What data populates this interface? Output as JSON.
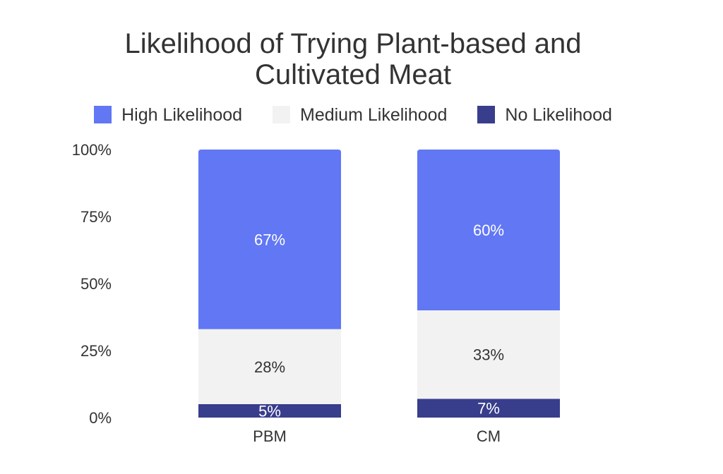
{
  "chart_data": {
    "type": "bar",
    "stacked": true,
    "title": "Likelihood of Trying Plant-based and Cultivated Meat",
    "title_lines": [
      "Likelihood of Trying Plant-based and",
      "Cultivated Meat"
    ],
    "xlabel": "",
    "ylabel": "",
    "ylim": [
      0,
      100
    ],
    "yticks": [
      "100%",
      "75%",
      "50%",
      "25%",
      "0%"
    ],
    "ytick_values": [
      100,
      75,
      50,
      25,
      0
    ],
    "categories": [
      "PBM",
      "CM"
    ],
    "series": [
      {
        "name": "No Likelihood",
        "values": [
          5,
          7
        ],
        "labels": [
          "5%",
          "7%"
        ],
        "color": "#383d8c",
        "label_color": "#ffffff"
      },
      {
        "name": "Medium Likelihood",
        "values": [
          28,
          33
        ],
        "labels": [
          "28%",
          "33%"
        ],
        "color": "#f2f2f2",
        "label_color": "#333333"
      },
      {
        "name": "High Likelihood",
        "values": [
          67,
          60
        ],
        "labels": [
          "67%",
          "60%"
        ],
        "color": "#6177f4",
        "label_color": "#ffffff"
      }
    ],
    "legend": {
      "position": "top",
      "order": [
        "High Likelihood",
        "Medium Likelihood",
        "No Likelihood"
      ]
    },
    "grid": false
  }
}
